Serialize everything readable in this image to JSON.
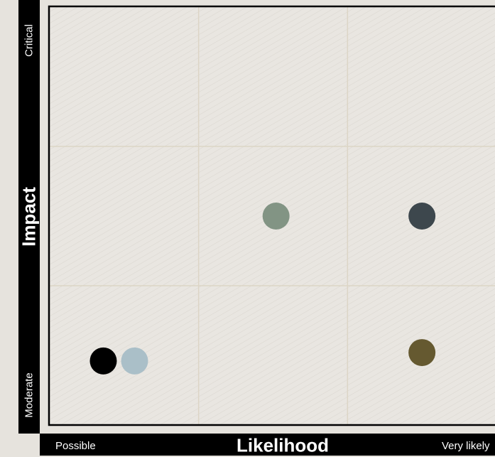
{
  "chart_data": {
    "type": "scatter",
    "title": "",
    "xlabel": "Likelihood",
    "ylabel": "Impact",
    "x_tick_labels": [
      "Possible",
      "Very likely"
    ],
    "y_tick_labels": [
      "Moderate",
      "Critical"
    ],
    "xlim": [
      0,
      3
    ],
    "ylim": [
      0,
      3
    ],
    "grid": true,
    "grid_cells": [
      3,
      3
    ],
    "legend": "none",
    "points": [
      {
        "x": 0.36,
        "y": 0.46,
        "color": "#000000"
      },
      {
        "x": 0.57,
        "y": 0.46,
        "color": "#aabfc8"
      },
      {
        "x": 1.52,
        "y": 1.5,
        "color": "#829484"
      },
      {
        "x": 2.5,
        "y": 1.5,
        "color": "#3d474d"
      },
      {
        "x": 2.5,
        "y": 0.52,
        "color": "#655930"
      }
    ]
  },
  "colors": {
    "plot_background": "#e9e6e1",
    "hatch": "#d9d5ce",
    "grid": "#dcd5c6",
    "frame": "#000000"
  }
}
